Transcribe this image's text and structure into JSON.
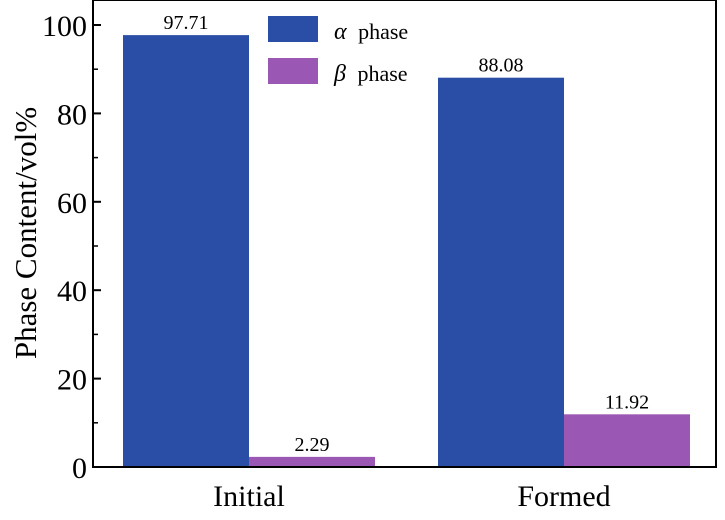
{
  "chart_data": {
    "type": "bar",
    "categories": [
      "Initial",
      "Formed"
    ],
    "series": [
      {
        "name": "α phase",
        "values": [
          97.71,
          88.08
        ],
        "color": "#2a4ea6"
      },
      {
        "name": "β phase",
        "values": [
          2.29,
          11.92
        ],
        "color": "#9a57b4"
      }
    ],
    "value_labels": [
      [
        "97.71",
        "88.08"
      ],
      [
        "2.29",
        "11.92"
      ]
    ],
    "legend": [
      {
        "symbol": "α",
        "text": "phase",
        "color": "#2a4ea6"
      },
      {
        "symbol": "β",
        "text": "phase",
        "color": "#9a57b4"
      }
    ],
    "legend_position": "top-center",
    "ylabel": "Phase Content/vol%",
    "xlabel": "",
    "ylim": [
      0,
      100
    ],
    "yticks": [
      "0",
      "20",
      "40",
      "60",
      "80",
      "100"
    ],
    "grid": false
  }
}
